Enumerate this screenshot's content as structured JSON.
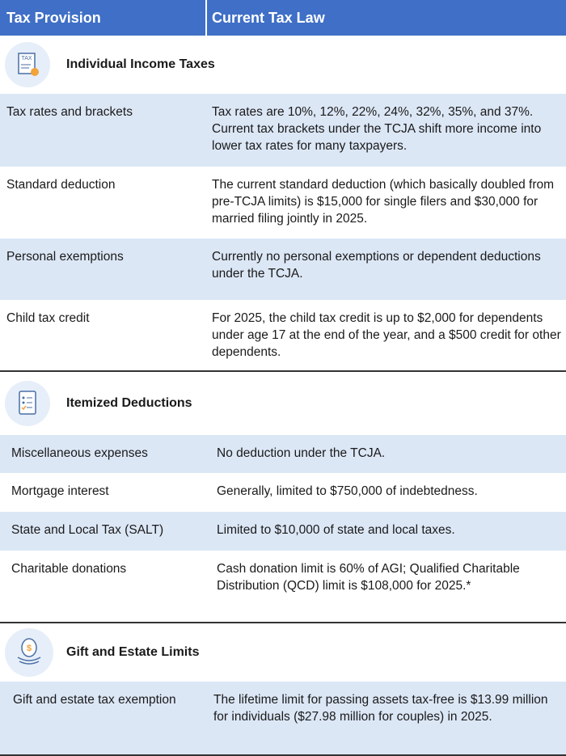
{
  "header": {
    "col1": "Tax Provision",
    "col2": "Current Tax Law"
  },
  "sections": [
    {
      "title": "Individual Income Taxes",
      "rows": [
        [
          "Tax rates and brackets",
          "Tax rates are 10%, 12%, 22%, 24%, 32%, 35%, and 37%. Current tax brackets under the TCJA shift more income into lower tax rates for many taxpayers."
        ],
        [
          "Standard deduction",
          "The current standard deduction (which basically doubled from pre-TCJA limits) is $15,000 for single filers and $30,000 for married filing jointly in 2025."
        ],
        [
          "Personal exemptions",
          "Currently no personal exemptions or dependent deductions under the TCJA."
        ],
        [
          "Child tax credit",
          "For 2025, the child tax credit is up to $2,000 for dependents under age 17 at the end of the year, and a $500 credit for other dependents."
        ]
      ]
    },
    {
      "title": "Itemized Deductions",
      "rows": [
        [
          "Miscellaneous expenses",
          "No deduction under the TCJA."
        ],
        [
          "Mortgage interest",
          "Generally, limited to $750,000 of indebtedness."
        ],
        [
          "State and Local Tax (SALT)",
          "Limited to $10,000 of state and local taxes."
        ],
        [
          "Charitable donations",
          "Cash donation limit is 60% of AGI; Qualified Charitable Distribution (QCD) limit is $108,000 for 2025.*"
        ]
      ]
    },
    {
      "title": "Gift and Estate Limits",
      "rows": [
        [
          "Gift and estate tax exemption",
          "The lifetime limit for passing assets tax-free is $13.99 million for individuals ($27.98 million for couples) in 2025."
        ]
      ]
    }
  ]
}
